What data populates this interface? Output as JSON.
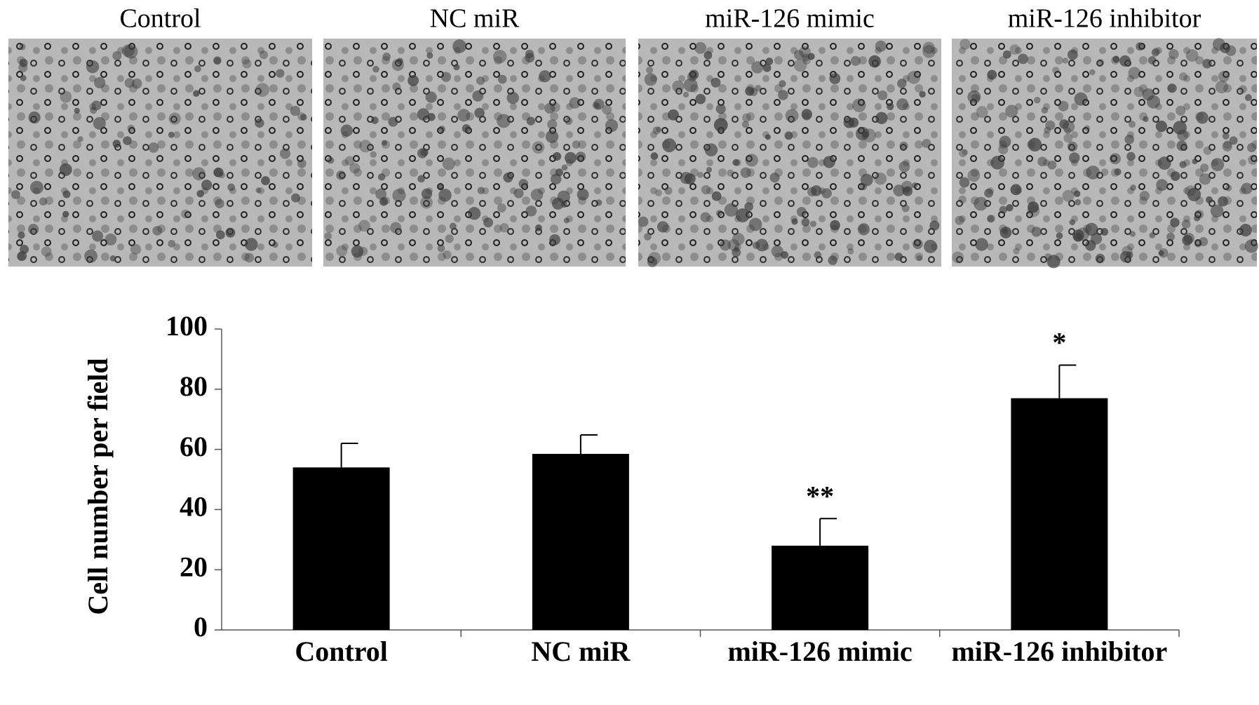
{
  "panel_labels": [
    "Control",
    "NC miR",
    "miR-126 mimic",
    "miR-126 inhibitor"
  ],
  "chart_data": {
    "type": "bar",
    "y_label": "Cell number per field",
    "categories": [
      "Control",
      "NC miR",
      "miR-126 mimic",
      "miR-126 inhibitor"
    ],
    "values": [
      54,
      58.5,
      28,
      77
    ],
    "errors": [
      8,
      6.3,
      9,
      11
    ],
    "annotations": [
      null,
      null,
      "**",
      "*"
    ],
    "color": "#000000",
    "ylim": [
      0,
      100
    ],
    "yticks": [
      0,
      20,
      40,
      60,
      80,
      100
    ],
    "grid": false
  }
}
